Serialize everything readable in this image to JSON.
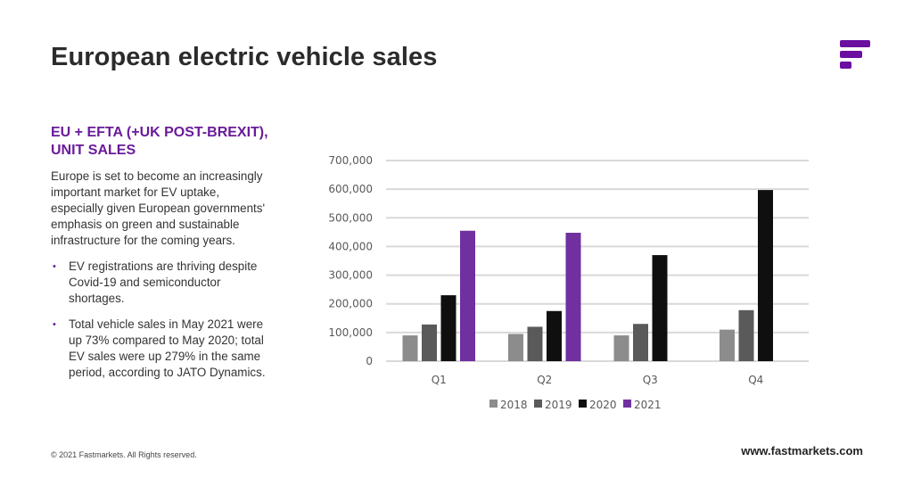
{
  "header": {
    "title": "European electric vehicle sales"
  },
  "logo": {
    "name": "fastmarkets-logo",
    "color": "#6a0fa0"
  },
  "sidebar": {
    "subheading": "EU + EFTA (+UK POST-BREXIT), UNIT SALES",
    "paragraph": "Europe is set to become an increasingly important market for EV uptake, especially given European governments' emphasis on green and sustainable infrastructure for the coming years.",
    "bullets": [
      "EV registrations are thriving despite Covid-19 and semiconductor shortages.",
      "Total vehicle sales in May 2021 were up 73% compared to May 2020; total EV sales were up 279% in the same period, according to JATO Dynamics."
    ],
    "bullet_glyph": "•"
  },
  "footer": {
    "copyright": "© 2021 Fastmarkets.  All Rights  reserved.",
    "website": "www.fastmarkets.com"
  },
  "chart_data": {
    "type": "bar",
    "title": "",
    "xlabel": "",
    "ylabel": "",
    "categories": [
      "Q1",
      "Q2",
      "Q3",
      "Q4"
    ],
    "series": [
      {
        "name": "2018",
        "color": "#8c8c8c",
        "values": [
          90000,
          95000,
          90000,
          110000
        ]
      },
      {
        "name": "2019",
        "color": "#5a5a5a",
        "values": [
          128000,
          120000,
          130000,
          178000
        ]
      },
      {
        "name": "2020",
        "color": "#0f0f0f",
        "values": [
          230000,
          175000,
          370000,
          597000
        ]
      },
      {
        "name": "2021",
        "color": "#7030a0",
        "values": [
          455000,
          448000,
          null,
          null
        ]
      }
    ],
    "ylim": [
      0,
      700000
    ],
    "yticks": [
      0,
      100000,
      200000,
      300000,
      400000,
      500000,
      600000,
      700000
    ],
    "ytick_labels": [
      "0",
      "100,000",
      "200,000",
      "300,000",
      "400,000",
      "500,000",
      "600,000",
      "700,000"
    ],
    "grid": true,
    "legend": "bottom"
  }
}
